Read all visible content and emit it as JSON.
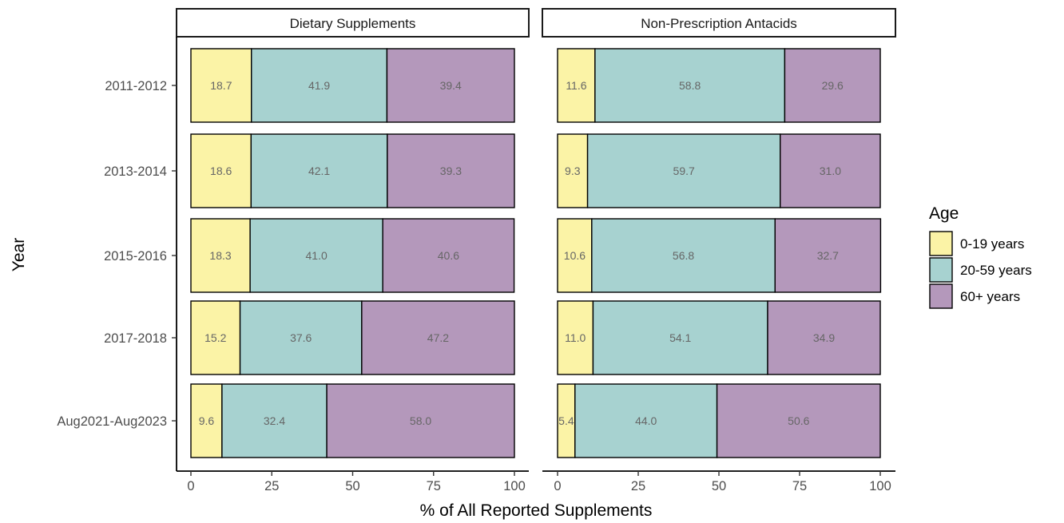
{
  "chart_data": {
    "type": "bar",
    "orientation": "horizontal",
    "stacked": true,
    "xlabel": "% of All Reported Supplements",
    "ylabel": "Year",
    "xlim": [
      0,
      100
    ],
    "xticks": [
      0,
      25,
      50,
      75,
      100
    ],
    "grid": false,
    "categories": [
      "2011-2012",
      "2013-2014",
      "2015-2016",
      "2017-2018",
      "Aug2021-Aug2023"
    ],
    "legend": {
      "title": "Age",
      "position": "right",
      "entries": [
        {
          "label": "0-19 years",
          "color": "#fbf3a6"
        },
        {
          "label": "20-59 years",
          "color": "#a7d2d0"
        },
        {
          "label": "60+ years",
          "color": "#b498bb"
        }
      ]
    },
    "panels": [
      {
        "title": "Dietary Supplements",
        "series": [
          {
            "name": "0-19 years",
            "values": [
              18.7,
              18.6,
              18.3,
              15.2,
              9.6
            ]
          },
          {
            "name": "20-59 years",
            "values": [
              41.9,
              42.1,
              41.0,
              37.6,
              32.4
            ]
          },
          {
            "name": "60+ years",
            "values": [
              39.4,
              39.3,
              40.6,
              47.2,
              58.0
            ]
          }
        ],
        "labels": [
          [
            "18.7",
            "41.9",
            "39.4"
          ],
          [
            "18.6",
            "42.1",
            "39.3"
          ],
          [
            "18.3",
            "41.0",
            "40.6"
          ],
          [
            "15.2",
            "37.6",
            "47.2"
          ],
          [
            "9.6",
            "32.4",
            "58.0"
          ]
        ]
      },
      {
        "title": "Non-Prescription Antacids",
        "series": [
          {
            "name": "0-19 years",
            "values": [
              11.6,
              9.3,
              10.6,
              11.0,
              5.4
            ]
          },
          {
            "name": "20-59 years",
            "values": [
              58.8,
              59.7,
              56.8,
              54.1,
              44.0
            ]
          },
          {
            "name": "60+ years",
            "values": [
              29.6,
              31.0,
              32.7,
              34.9,
              50.6
            ]
          }
        ],
        "labels": [
          [
            "11.6",
            "58.8",
            "29.6"
          ],
          [
            "9.3",
            "59.7",
            "31.0"
          ],
          [
            "10.6",
            "56.8",
            "32.7"
          ],
          [
            "11.0",
            "54.1",
            "34.9"
          ],
          [
            "5.4",
            "44.0",
            "50.6"
          ]
        ]
      }
    ]
  }
}
